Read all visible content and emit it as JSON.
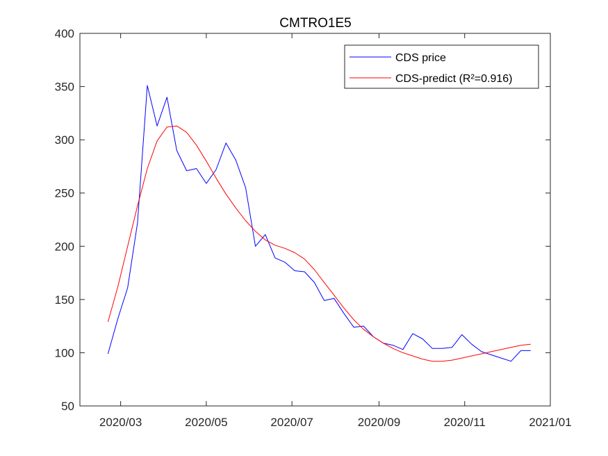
{
  "chart_data": {
    "type": "line",
    "title": "CMTRO1E5",
    "xlabel": "",
    "ylabel": "",
    "ylim": [
      50,
      400
    ],
    "xlim": [
      "2020-02-01",
      "2021-01-01"
    ],
    "yticks": [
      50,
      100,
      150,
      200,
      250,
      300,
      350,
      400
    ],
    "ytick_labels": [
      "50",
      "100",
      "150",
      "200",
      "250",
      "300",
      "350",
      "400"
    ],
    "xticks": [
      "2020-03-01",
      "2020-05-01",
      "2020-07-01",
      "2020-09-01",
      "2020-11-01",
      "2021-01-01"
    ],
    "xtick_labels": [
      "2020/03",
      "2020/05",
      "2020/07",
      "2020/09",
      "2020/11",
      "2021/01"
    ],
    "grid": false,
    "legend_position": "top-right",
    "series": [
      {
        "name": "CDS price",
        "color": "#0000ff",
        "x": [
          "2020-02-21",
          "2020-02-28",
          "2020-03-06",
          "2020-03-13",
          "2020-03-20",
          "2020-03-27",
          "2020-04-03",
          "2020-04-10",
          "2020-04-17",
          "2020-04-24",
          "2020-05-01",
          "2020-05-08",
          "2020-05-15",
          "2020-05-22",
          "2020-05-29",
          "2020-06-05",
          "2020-06-12",
          "2020-06-19",
          "2020-06-26",
          "2020-07-03",
          "2020-07-10",
          "2020-07-17",
          "2020-07-24",
          "2020-07-31",
          "2020-08-07",
          "2020-08-14",
          "2020-08-21",
          "2020-08-28",
          "2020-09-04",
          "2020-09-11",
          "2020-09-18",
          "2020-09-25",
          "2020-10-02",
          "2020-10-09",
          "2020-10-16",
          "2020-10-23",
          "2020-10-30",
          "2020-11-06",
          "2020-11-13",
          "2020-11-20",
          "2020-11-27",
          "2020-12-04",
          "2020-12-11",
          "2020-12-18"
        ],
        "values": [
          99,
          132,
          161,
          222,
          351,
          313,
          340,
          290,
          271,
          273,
          259,
          272,
          297,
          281,
          255,
          200,
          211,
          189,
          185,
          177,
          176,
          166,
          149,
          151,
          137,
          124,
          125,
          115,
          109,
          107,
          103,
          118,
          113,
          104,
          104,
          105,
          117,
          108,
          101,
          98,
          95,
          92,
          102,
          102
        ]
      },
      {
        "name": "CDS-predict (R²=0.916)",
        "color": "#ff0000",
        "x": [
          "2020-02-21",
          "2020-02-28",
          "2020-03-06",
          "2020-03-13",
          "2020-03-20",
          "2020-03-27",
          "2020-04-03",
          "2020-04-10",
          "2020-04-17",
          "2020-04-24",
          "2020-05-01",
          "2020-05-08",
          "2020-05-15",
          "2020-05-22",
          "2020-05-29",
          "2020-06-05",
          "2020-06-12",
          "2020-06-19",
          "2020-06-26",
          "2020-07-03",
          "2020-07-10",
          "2020-07-17",
          "2020-07-24",
          "2020-07-31",
          "2020-08-07",
          "2020-08-14",
          "2020-08-21",
          "2020-08-28",
          "2020-09-04",
          "2020-09-11",
          "2020-09-18",
          "2020-09-25",
          "2020-10-02",
          "2020-10-09",
          "2020-10-16",
          "2020-10-23",
          "2020-10-30",
          "2020-11-06",
          "2020-11-13",
          "2020-11-20",
          "2020-11-27",
          "2020-12-04",
          "2020-12-11",
          "2020-12-18"
        ],
        "values": [
          129,
          162,
          200,
          238,
          273,
          299,
          312,
          313,
          307,
          295,
          280,
          264,
          249,
          236,
          224,
          214,
          206,
          201,
          198,
          194,
          188,
          178,
          166,
          154,
          142,
          131,
          122,
          115,
          109,
          104,
          100,
          97,
          94,
          92,
          92,
          93,
          95,
          97,
          99,
          101,
          103,
          105,
          107,
          108
        ]
      }
    ]
  }
}
